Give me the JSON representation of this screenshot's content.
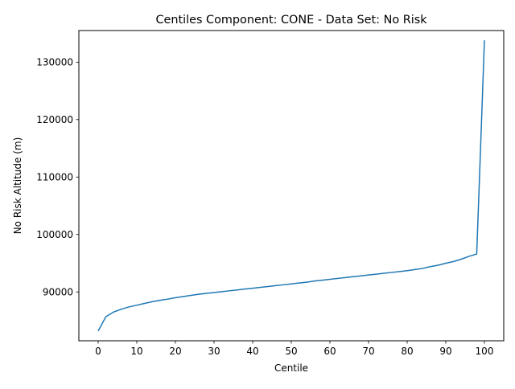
{
  "chart_data": {
    "type": "line",
    "title": "Centiles Component: CONE - Data Set: No Risk",
    "xlabel": "Centile",
    "ylabel": "No Risk Altitude (m)",
    "xlim": [
      -5,
      105
    ],
    "ylim": [
      81500,
      135500
    ],
    "xticks": [
      0,
      10,
      20,
      30,
      40,
      50,
      60,
      70,
      80,
      90,
      100
    ],
    "xtick_labels": [
      "0",
      "10",
      "20",
      "30",
      "40",
      "50",
      "60",
      "70",
      "80",
      "90",
      "100"
    ],
    "yticks": [
      90000,
      100000,
      110000,
      120000,
      130000
    ],
    "ytick_labels": [
      "90000",
      "100000",
      "110000",
      "120000",
      "130000"
    ],
    "grid": false,
    "line_color": "#1f77b4",
    "series": [
      {
        "x": [
          0,
          2,
          4,
          6,
          8,
          10,
          12,
          14,
          16,
          18,
          20,
          22,
          24,
          26,
          28,
          30,
          32,
          34,
          36,
          38,
          40,
          42,
          44,
          46,
          48,
          50,
          52,
          54,
          56,
          58,
          60,
          62,
          64,
          66,
          68,
          70,
          72,
          74,
          76,
          78,
          80,
          82,
          84,
          86,
          88,
          90,
          92,
          94,
          96,
          98,
          99,
          100
        ],
        "y": [
          83200,
          85700,
          86500,
          87000,
          87400,
          87700,
          88000,
          88300,
          88550,
          88750,
          89000,
          89200,
          89400,
          89600,
          89750,
          89900,
          90050,
          90200,
          90350,
          90500,
          90650,
          90800,
          90950,
          91100,
          91250,
          91400,
          91550,
          91700,
          91900,
          92050,
          92200,
          92350,
          92500,
          92650,
          92800,
          92950,
          93100,
          93250,
          93400,
          93550,
          93700,
          93900,
          94100,
          94400,
          94650,
          95000,
          95300,
          95700,
          96200,
          96600,
          115000,
          133800
        ]
      }
    ]
  }
}
